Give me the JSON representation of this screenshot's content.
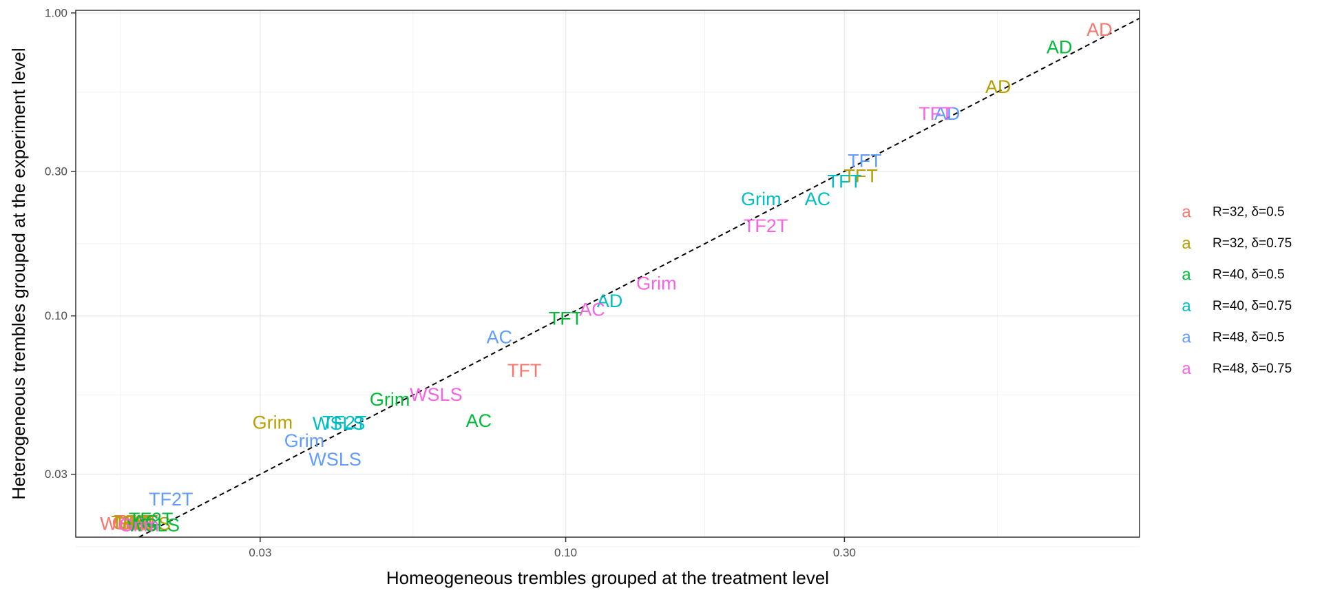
{
  "chart_data": {
    "type": "scatter",
    "title": "",
    "xlabel": "Homeogeneous trembles grouped at the treatment level",
    "ylabel": "Heterogeneous trembles grouped at the experiment level",
    "x_scale": "log10",
    "y_scale": "log10",
    "xlim": [
      0.0145,
      0.96
    ],
    "ylim": [
      0.0186,
      1.02
    ],
    "x_ticks": [
      {
        "value": 0.03,
        "label": "0.03"
      },
      {
        "value": 0.1,
        "label": "0.10"
      },
      {
        "value": 0.3,
        "label": "0.30"
      }
    ],
    "y_ticks": [
      {
        "value": 0.03,
        "label": "0.03"
      },
      {
        "value": 0.1,
        "label": "0.10"
      },
      {
        "value": 0.3,
        "label": "0.30"
      },
      {
        "value": 1.0,
        "label": "1.00"
      }
    ],
    "x_minor_ticks": [
      0.0173,
      0.0548,
      0.173,
      0.548
    ],
    "y_minor_ticks": [
      0.0173,
      0.0548,
      0.173,
      0.548
    ],
    "grid": true,
    "reference_line": {
      "type": "identity",
      "style": "dashed",
      "color": "#000000"
    },
    "legend_position": "right",
    "legend_key_glyph": "a",
    "series": [
      {
        "name": "R=32, δ=0.5",
        "color": "#F8766D",
        "points": [
          {
            "label": "AD",
            "x": 0.82,
            "y": 0.88
          },
          {
            "label": "TFT",
            "x": 0.085,
            "y": 0.066
          },
          {
            "label": "WSLS",
            "x": 0.0177,
            "y": 0.0206
          },
          {
            "label": "Grim",
            "x": 0.0181,
            "y": 0.0207
          },
          {
            "label": "TF2T",
            "x": 0.0184,
            "y": 0.0209
          },
          {
            "label": "AC",
            "x": 0.0187,
            "y": 0.0207
          }
        ]
      },
      {
        "name": "R=32, δ=0.75",
        "color": "#B79F00",
        "points": [
          {
            "label": "AD",
            "x": 0.55,
            "y": 0.57
          },
          {
            "label": "TFT",
            "x": 0.32,
            "y": 0.29
          },
          {
            "label": "Grim",
            "x": 0.0315,
            "y": 0.0445
          },
          {
            "label": "TF2T",
            "x": 0.0182,
            "y": 0.0208
          },
          {
            "label": "AC",
            "x": 0.0186,
            "y": 0.0209
          },
          {
            "label": "WSLS",
            "x": 0.019,
            "y": 0.0206
          }
        ]
      },
      {
        "name": "R=40, δ=0.5",
        "color": "#00BA38",
        "points": [
          {
            "label": "AD",
            "x": 0.7,
            "y": 0.77
          },
          {
            "label": "TFT",
            "x": 0.1,
            "y": 0.098
          },
          {
            "label": "Grim",
            "x": 0.05,
            "y": 0.053
          },
          {
            "label": "AC",
            "x": 0.071,
            "y": 0.045
          },
          {
            "label": "TF2T",
            "x": 0.0195,
            "y": 0.0213
          },
          {
            "label": "WSLS",
            "x": 0.0197,
            "y": 0.0204
          },
          {
            "label": "AC",
            "x": 0.0191,
            "y": 0.0209
          }
        ]
      },
      {
        "name": "R=40, δ=0.75",
        "color": "#00BFC4",
        "points": [
          {
            "label": "AD",
            "x": 0.119,
            "y": 0.112
          },
          {
            "label": "AC",
            "x": 0.27,
            "y": 0.243
          },
          {
            "label": "Grim",
            "x": 0.216,
            "y": 0.243
          },
          {
            "label": "TFT",
            "x": 0.3,
            "y": 0.278
          },
          {
            "label": "TF2T",
            "x": 0.0418,
            "y": 0.0445
          },
          {
            "label": "WSLS",
            "x": 0.0409,
            "y": 0.0441
          }
        ]
      },
      {
        "name": "R=48, δ=0.5",
        "color": "#619CFF",
        "points": [
          {
            "label": "AD",
            "x": 0.45,
            "y": 0.465
          },
          {
            "label": "TFT",
            "x": 0.325,
            "y": 0.325
          },
          {
            "label": "AC",
            "x": 0.077,
            "y": 0.085
          },
          {
            "label": "Grim",
            "x": 0.0357,
            "y": 0.0387
          },
          {
            "label": "WSLS",
            "x": 0.0403,
            "y": 0.0336
          },
          {
            "label": "TF2T",
            "x": 0.0211,
            "y": 0.0248
          }
        ]
      },
      {
        "name": "R=48, δ=0.75",
        "color": "#F564E3",
        "points": [
          {
            "label": "TFT",
            "x": 0.43,
            "y": 0.465
          },
          {
            "label": "TF2T",
            "x": 0.22,
            "y": 0.198
          },
          {
            "label": "Grim",
            "x": 0.143,
            "y": 0.128
          },
          {
            "label": "AC",
            "x": 0.111,
            "y": 0.105
          },
          {
            "label": "WSLS",
            "x": 0.06,
            "y": 0.055
          },
          {
            "label": "Grim",
            "x": 0.0186,
            "y": 0.0204
          }
        ]
      }
    ]
  }
}
